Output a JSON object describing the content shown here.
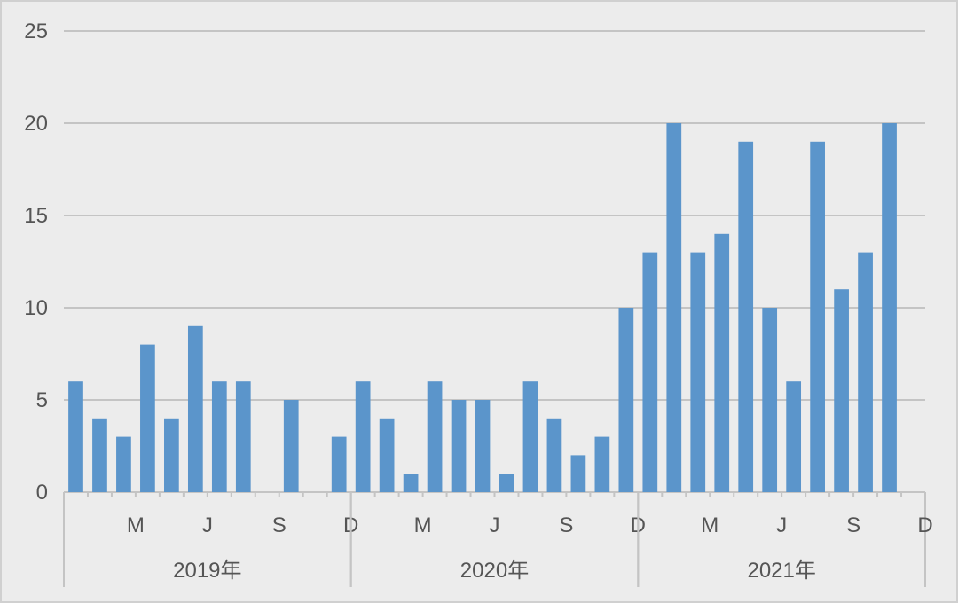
{
  "chart_data": {
    "type": "bar",
    "color": "#5b95cb",
    "ylim": [
      0,
      25
    ],
    "yticks": [
      0,
      5,
      10,
      15,
      20,
      25
    ],
    "grid": true,
    "legend": "none",
    "groups": [
      {
        "label": "2019年",
        "month_tick_labels": [
          "",
          "",
          "",
          "M",
          "",
          "",
          "J",
          "",
          "",
          "S",
          "",
          "",
          "D"
        ],
        "values": [
          6,
          4,
          3,
          8,
          4,
          9,
          6,
          6,
          0,
          5,
          0,
          3
        ]
      },
      {
        "label": "2020年",
        "month_tick_labels": [
          "",
          "",
          "",
          "M",
          "",
          "",
          "J",
          "",
          "",
          "S",
          "",
          "",
          "D"
        ],
        "values": [
          6,
          4,
          1,
          6,
          5,
          5,
          1,
          6,
          4,
          2,
          3,
          10
        ]
      },
      {
        "label": "2021年",
        "month_tick_labels": [
          "",
          "",
          "",
          "M",
          "",
          "",
          "J",
          "",
          "",
          "S",
          "",
          "",
          "D"
        ],
        "values": [
          13,
          20,
          13,
          14,
          19,
          10,
          6,
          19,
          11,
          13,
          20,
          0
        ]
      }
    ],
    "title": "",
    "xlabel": "",
    "ylabel": ""
  }
}
